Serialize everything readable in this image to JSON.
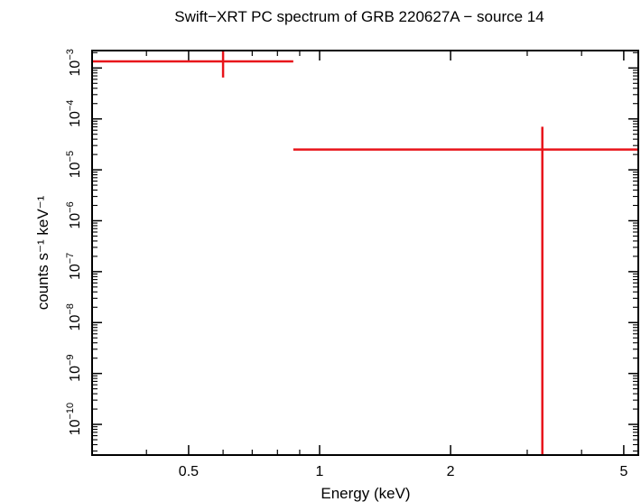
{
  "chart_data": {
    "type": "scatter",
    "title": "Swift−XRT PC spectrum of GRB 220627A − source 14",
    "xlabel": "Energy (keV)",
    "ylabel": "counts s⁻¹ keV⁻¹",
    "x_scale": "log",
    "y_scale": "log",
    "xlim": [
      0.3,
      5.4
    ],
    "ylim": [
      2.5e-11,
      0.0022
    ],
    "x_ticks": [
      {
        "value": 0.5,
        "label": "0.5"
      },
      {
        "value": 1,
        "label": "1"
      },
      {
        "value": 2,
        "label": "2"
      },
      {
        "value": 5,
        "label": "5"
      }
    ],
    "y_ticks": [
      {
        "value": 0.001,
        "base": "10",
        "exp": "−3"
      },
      {
        "value": 0.0001,
        "base": "10",
        "exp": "−4"
      },
      {
        "value": 1e-05,
        "base": "10",
        "exp": "−5"
      },
      {
        "value": 1e-06,
        "base": "10",
        "exp": "−6"
      },
      {
        "value": 1e-07,
        "base": "10",
        "exp": "−7"
      },
      {
        "value": 1e-08,
        "base": "10",
        "exp": "−8"
      },
      {
        "value": 1e-09,
        "base": "10",
        "exp": "−9"
      },
      {
        "value": 1e-10,
        "base": "10",
        "exp": "−10"
      }
    ],
    "series": [
      {
        "color": "#e8141a",
        "points": [
          {
            "x": 0.6,
            "x_low": 0.3,
            "x_high": 0.87,
            "y": 0.00135,
            "y_low": 0.00065,
            "y_high": 0.0022
          },
          {
            "x": 3.25,
            "x_low": 0.87,
            "x_high": 5.4,
            "y": 2.5e-05,
            "y_low": 2.5e-11,
            "y_high": 7e-05
          }
        ]
      }
    ]
  }
}
